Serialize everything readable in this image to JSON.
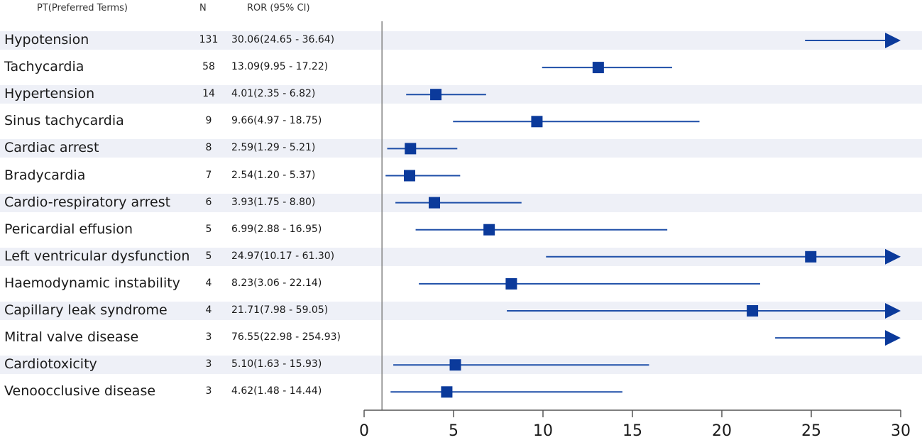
{
  "chart_data": {
    "type": "forest",
    "columns": {
      "pt": "PT(Preferred Terms)",
      "n": "N",
      "ror": "ROR (95% CI)"
    },
    "rows": [
      {
        "pt": "Hypotension",
        "n": "131",
        "ror_text": "30.06(24.65 - 36.64)",
        "ror": 30.06,
        "lo": 24.65,
        "hi": 36.64
      },
      {
        "pt": "Tachycardia",
        "n": "58",
        "ror_text": "13.09(9.95 - 17.22)",
        "ror": 13.09,
        "lo": 9.95,
        "hi": 17.22
      },
      {
        "pt": "Hypertension",
        "n": "14",
        "ror_text": "4.01(2.35 - 6.82)",
        "ror": 4.01,
        "lo": 2.35,
        "hi": 6.82
      },
      {
        "pt": "Sinus tachycardia",
        "n": "9",
        "ror_text": "9.66(4.97 - 18.75)",
        "ror": 9.66,
        "lo": 4.97,
        "hi": 18.75
      },
      {
        "pt": "Cardiac arrest",
        "n": "8",
        "ror_text": "2.59(1.29 - 5.21)",
        "ror": 2.59,
        "lo": 1.29,
        "hi": 5.21
      },
      {
        "pt": "Bradycardia",
        "n": "7",
        "ror_text": "2.54(1.20 - 5.37)",
        "ror": 2.54,
        "lo": 1.2,
        "hi": 5.37
      },
      {
        "pt": "Cardio-respiratory arrest",
        "n": "6",
        "ror_text": "3.93(1.75 - 8.80)",
        "ror": 3.93,
        "lo": 1.75,
        "hi": 8.8
      },
      {
        "pt": "Pericardial effusion",
        "n": "5",
        "ror_text": "6.99(2.88 - 16.95)",
        "ror": 6.99,
        "lo": 2.88,
        "hi": 16.95
      },
      {
        "pt": "Left ventricular dysfunction",
        "n": "5",
        "ror_text": "24.97(10.17 - 61.30)",
        "ror": 24.97,
        "lo": 10.17,
        "hi": 61.3
      },
      {
        "pt": "Haemodynamic instability",
        "n": "4",
        "ror_text": "8.23(3.06 - 22.14)",
        "ror": 8.23,
        "lo": 3.06,
        "hi": 22.14
      },
      {
        "pt": "Capillary leak syndrome",
        "n": "4",
        "ror_text": "21.71(7.98 - 59.05)",
        "ror": 21.71,
        "lo": 7.98,
        "hi": 59.05
      },
      {
        "pt": "Mitral valve disease",
        "n": "3",
        "ror_text": "76.55(22.98 - 254.93)",
        "ror": 76.55,
        "lo": 22.98,
        "hi": 254.93
      },
      {
        "pt": "Cardiotoxicity",
        "n": "3",
        "ror_text": "5.10(1.63 - 15.93)",
        "ror": 5.1,
        "lo": 1.63,
        "hi": 15.93
      },
      {
        "pt": "Venoocclusive disease",
        "n": "3",
        "ror_text": "4.62(1.48 - 14.44)",
        "ror": 4.62,
        "lo": 1.48,
        "hi": 14.44
      }
    ],
    "x_ticks": [
      0,
      5,
      10,
      15,
      20,
      25,
      30
    ],
    "xlim": [
      0,
      30
    ],
    "reference_line": 1,
    "colors": {
      "marker": "#0b3a9b",
      "line": "#1f4fa8",
      "band": "#eef0f7",
      "reference": "#888888",
      "axis": "#555555"
    }
  }
}
